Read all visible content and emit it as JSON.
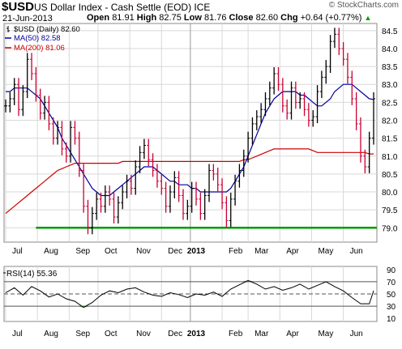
{
  "header": {
    "symbol": "$USD",
    "description": "US Dollar Index - Cash Settle (EOD) ICE",
    "watermark": "© StockCharts.com",
    "date": "21-Jun-2013",
    "open_label": "Open",
    "open": "81.91",
    "high_label": "High",
    "high": "82.75",
    "low_label": "Low",
    "low": "81.76",
    "close_label": "Close",
    "close": "82.60",
    "chg_label": "Chg",
    "chg": "+0.64 (+0.77%)",
    "chg_arrow": "▲"
  },
  "colors": {
    "price": "#000000",
    "price_down": "#cc0033",
    "ma50": "#000099",
    "ma200": "#cc0000",
    "support": "#009900",
    "rsi": "#000000",
    "rsi_fill": "#559955",
    "grid": "#d8d8d8"
  },
  "chart_data": [
    {
      "type": "line",
      "title": "$USD (Daily) 82.60",
      "legend": [
        {
          "name": "$USD (Daily) 82.60",
          "color": "#000000",
          "kind": "ohlc"
        },
        {
          "name": "MA(50) 82.58",
          "color": "#000099"
        },
        {
          "name": "MA(200) 81.06",
          "color": "#cc0000"
        }
      ],
      "legend_position": "top-left",
      "ylim": [
        78.6,
        84.7
      ],
      "yticks": [
        "79.0",
        "79.5",
        "80.0",
        "80.5",
        "81.0",
        "81.5",
        "82.0",
        "82.5",
        "83.0",
        "83.5",
        "84.0",
        "84.5"
      ],
      "y_axis_side": "right",
      "x_ticks": [
        "Jul",
        "Aug",
        "Sep",
        "Oct",
        "Nov",
        "Dec",
        "2013",
        "Feb",
        "Mar",
        "Apr",
        "May",
        "Jun"
      ],
      "grid": true,
      "x": [
        0,
        3,
        6,
        9,
        12,
        15,
        18,
        21,
        24,
        27,
        30,
        33,
        36,
        39,
        42,
        45,
        48,
        51,
        54,
        57,
        60,
        63,
        66,
        69,
        72,
        75,
        78,
        81,
        84,
        87,
        90,
        93,
        96,
        99,
        102,
        105,
        108,
        111,
        114,
        117,
        120,
        123,
        126,
        129,
        132,
        135,
        138,
        141,
        144,
        147,
        150,
        153,
        156,
        159,
        162,
        165,
        168,
        171,
        174,
        177,
        180,
        183,
        186,
        189,
        192,
        195,
        198,
        201,
        204,
        207,
        210,
        213,
        216,
        219,
        222,
        225,
        228,
        231,
        234,
        237,
        240,
        243,
        246,
        249,
        252,
        255
      ],
      "series": [
        {
          "name": "$USD (Daily) 82.60",
          "values": [
            82.4,
            82.6,
            83.0,
            82.3,
            82.8,
            83.7,
            83.3,
            82.7,
            82.2,
            82.5,
            81.9,
            81.5,
            81.8,
            81.2,
            81.0,
            81.8,
            81.5,
            80.6,
            79.6,
            79.0,
            79.4,
            79.8,
            79.6,
            80.0,
            79.8,
            79.3,
            79.7,
            80.0,
            80.3,
            80.1,
            80.7,
            81.1,
            81.3,
            80.9,
            80.6,
            80.3,
            80.1,
            79.6,
            80.0,
            80.4,
            79.9,
            79.4,
            79.6,
            80.1,
            79.8,
            79.4,
            79.9,
            80.6,
            80.5,
            80.2,
            79.7,
            79.2,
            79.8,
            80.3,
            80.6,
            81.0,
            81.5,
            81.9,
            82.1,
            82.3,
            82.6,
            82.9,
            83.3,
            83.0,
            82.4,
            82.2,
            82.9,
            82.5,
            82.6,
            82.3,
            82.0,
            82.1,
            82.8,
            83.2,
            83.5,
            84.2,
            84.4,
            84.0,
            83.7,
            83.2,
            82.6,
            81.9,
            81.0,
            80.7,
            81.5,
            82.6
          ]
        },
        {
          "name": "MA(50) 82.58",
          "values": [
            82.8,
            82.8,
            82.9,
            82.9,
            82.9,
            82.9,
            82.8,
            82.7,
            82.6,
            82.4,
            82.2,
            82.0,
            81.8,
            81.5,
            81.3,
            81.1,
            80.9,
            80.7,
            80.5,
            80.3,
            80.1,
            80.0,
            79.9,
            79.9,
            79.9,
            80.0,
            80.1,
            80.2,
            80.3,
            80.4,
            80.5,
            80.6,
            80.7,
            80.7,
            80.7,
            80.6,
            80.5,
            80.4,
            80.3,
            80.3,
            80.2,
            80.2,
            80.2,
            80.1,
            80.1,
            80.0,
            80.0,
            80.0,
            80.0,
            80.0,
            80.0,
            80.0,
            80.1,
            80.3,
            80.5,
            80.7,
            81.0,
            81.3,
            81.6,
            81.9,
            82.2,
            82.4,
            82.6,
            82.7,
            82.8,
            82.8,
            82.8,
            82.8,
            82.7,
            82.7,
            82.6,
            82.5,
            82.4,
            82.4,
            82.5,
            82.6,
            82.8,
            82.9,
            83.0,
            83.0,
            83.0,
            82.9,
            82.8,
            82.7,
            82.6,
            82.58
          ]
        },
        {
          "name": "MA(200) 81.06",
          "values": [
            79.4,
            79.5,
            79.6,
            79.7,
            79.8,
            79.9,
            80.0,
            80.1,
            80.2,
            80.3,
            80.4,
            80.5,
            80.6,
            80.65,
            80.7,
            80.75,
            80.8,
            80.8,
            80.8,
            80.8,
            80.8,
            80.8,
            80.8,
            80.8,
            80.8,
            80.8,
            80.8,
            80.85,
            80.85,
            80.85,
            80.85,
            80.85,
            80.85,
            80.85,
            80.85,
            80.85,
            80.85,
            80.85,
            80.85,
            80.85,
            80.85,
            80.85,
            80.85,
            80.85,
            80.85,
            80.85,
            80.85,
            80.85,
            80.85,
            80.85,
            80.85,
            80.85,
            80.85,
            80.85,
            80.85,
            80.9,
            80.9,
            80.95,
            81.0,
            81.05,
            81.1,
            81.15,
            81.2,
            81.2,
            81.2,
            81.2,
            81.2,
            81.2,
            81.2,
            81.2,
            81.2,
            81.15,
            81.1,
            81.1,
            81.1,
            81.1,
            81.1,
            81.1,
            81.1,
            81.1,
            81.1,
            81.1,
            81.1,
            81.1,
            81.06,
            81.06
          ]
        }
      ],
      "annotations": [
        {
          "type": "horizontal-line",
          "y": 79.0,
          "x_from": 21,
          "label": ""
        }
      ]
    },
    {
      "type": "line",
      "title": "RSI(14) 55.36",
      "ylim": [
        5,
        95
      ],
      "yticks": [
        "10",
        "30",
        "50",
        "70",
        "90"
      ],
      "reference_lines": [
        30,
        50,
        70
      ],
      "x_ticks": [
        "Jul",
        "Aug",
        "Sep",
        "Oct",
        "Nov",
        "Dec",
        "2013",
        "Feb",
        "Mar",
        "Apr",
        "May",
        "Jun"
      ],
      "x": [
        0,
        6,
        12,
        18,
        24,
        30,
        36,
        42,
        48,
        54,
        60,
        66,
        72,
        78,
        84,
        90,
        96,
        102,
        108,
        114,
        120,
        126,
        132,
        138,
        144,
        150,
        156,
        162,
        168,
        174,
        180,
        186,
        192,
        198,
        204,
        210,
        216,
        222,
        228,
        234,
        240,
        246,
        252,
        255
      ],
      "series": [
        {
          "name": "RSI(14) 55.36",
          "values": [
            52,
            60,
            48,
            62,
            55,
            45,
            50,
            42,
            38,
            28,
            36,
            48,
            55,
            52,
            58,
            60,
            53,
            48,
            46,
            52,
            49,
            44,
            50,
            48,
            53,
            46,
            58,
            65,
            72,
            66,
            58,
            62,
            56,
            60,
            66,
            58,
            64,
            70,
            62,
            55,
            44,
            34,
            34,
            55.36
          ]
        }
      ]
    }
  ]
}
